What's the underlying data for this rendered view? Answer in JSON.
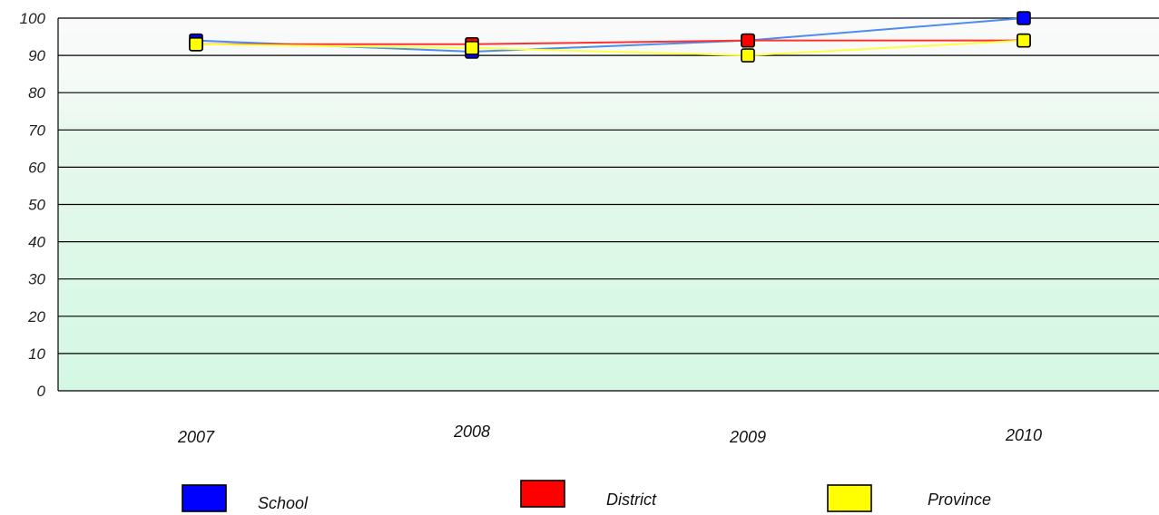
{
  "chart_data": {
    "type": "line",
    "title": "",
    "xlabel": "",
    "ylabel": "",
    "categories": [
      "2007",
      "2008",
      "2009",
      "2010"
    ],
    "y_ticks": [
      "0",
      "10",
      "20",
      "30",
      "40",
      "50",
      "60",
      "70",
      "80",
      "90",
      "100"
    ],
    "ylim": [
      0,
      100
    ],
    "grid": true,
    "legend_position": "bottom",
    "series": [
      {
        "name": "School",
        "color": "#0000ff",
        "line_color": "#4d8cf0",
        "values": [
          94,
          91,
          94,
          100
        ]
      },
      {
        "name": "District",
        "color": "#ff0000",
        "line_color": "#ff3030",
        "values": [
          93,
          93,
          94,
          94
        ]
      },
      {
        "name": "Province",
        "color": "#ffff00",
        "line_color": "#ffff40",
        "values": [
          93,
          92,
          90,
          94
        ]
      }
    ]
  }
}
